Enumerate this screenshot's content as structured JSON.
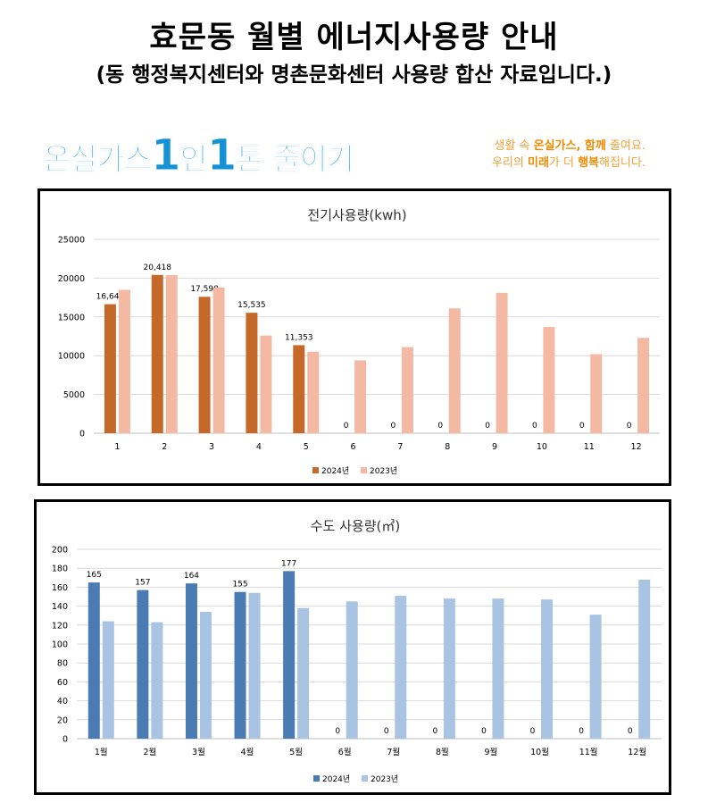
{
  "header": {
    "title": "효문동 월별 에너지사용량 안내",
    "subtitle": "(동 행정복지센터와 명촌문화센터 사용량 합산 자료입니다.)"
  },
  "campaign": {
    "part1": "온실가스",
    "num1": "1",
    "part2": "인",
    "num2": "1",
    "part3": "톤 줄이기"
  },
  "slogan": {
    "line1_a": "생활 속 ",
    "line1_b": "온실가스, 함께",
    "line1_c": " 줄여요.",
    "line2_a": "우리의 ",
    "line2_b": "미래",
    "line2_c": "가 더 ",
    "line2_d": "행복",
    "line2_e": "해집니다."
  },
  "chart_data": [
    {
      "type": "bar",
      "title": "전기사용량(kwh)",
      "categories": [
        "1",
        "2",
        "3",
        "4",
        "5",
        "6",
        "7",
        "8",
        "9",
        "10",
        "11",
        "12"
      ],
      "series": [
        {
          "name": "2024년",
          "color": "#c5692a",
          "values": [
            16640,
            20418,
            17598,
            15535,
            11353,
            0,
            0,
            0,
            0,
            0,
            0,
            0
          ],
          "labels": [
            "16,640",
            "20,418",
            "17,598",
            "15,535",
            "11,353",
            "0",
            "0",
            "0",
            "0",
            "0",
            "0",
            "0"
          ]
        },
        {
          "name": "2023년",
          "color": "#f4b9a3",
          "values": [
            18500,
            20400,
            18800,
            12600,
            10500,
            9400,
            11100,
            16100,
            18100,
            13700,
            10200,
            12300
          ]
        }
      ],
      "yticks": [
        "0",
        "5000",
        "10000",
        "15000",
        "20000",
        "25000"
      ],
      "ylim": [
        0,
        25000
      ],
      "grid": true,
      "legend": "bottom"
    },
    {
      "type": "bar",
      "title": "수도 사용량(㎥)",
      "categories": [
        "1월",
        "2월",
        "3월",
        "4월",
        "5월",
        "6월",
        "7월",
        "8월",
        "9월",
        "10월",
        "11월",
        "12월"
      ],
      "series": [
        {
          "name": "2024년",
          "color": "#4a7cb3",
          "values": [
            165,
            157,
            164,
            155,
            177,
            0,
            0,
            0,
            0,
            0,
            0,
            0
          ],
          "labels": [
            "165",
            "157",
            "164",
            "155",
            "177",
            "0",
            "0",
            "0",
            "0",
            "0",
            "0",
            "0"
          ]
        },
        {
          "name": "2023년",
          "color": "#a9c3e3",
          "values": [
            124,
            123,
            134,
            154,
            138,
            145,
            151,
            148,
            148,
            147,
            131,
            168
          ]
        }
      ],
      "yticks": [
        "0",
        "20",
        "40",
        "60",
        "80",
        "100",
        "120",
        "140",
        "160",
        "180",
        "200"
      ],
      "ylim": [
        0,
        200
      ],
      "grid": true,
      "legend": "bottom"
    }
  ]
}
